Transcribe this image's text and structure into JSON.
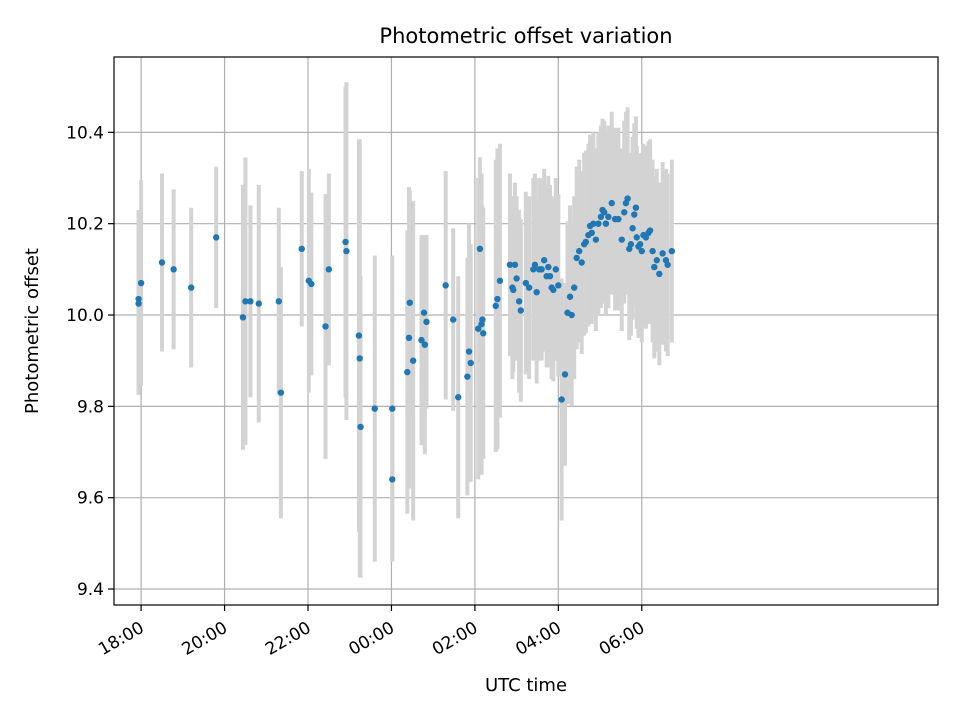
{
  "chart_data": {
    "type": "scatter",
    "title": "Photometric offset variation",
    "xlabel": "UTC time",
    "ylabel": "Photometric offset",
    "x_range_hours": [
      -6.65,
      13.1
    ],
    "ylim": [
      9.365,
      10.565
    ],
    "x_ticks": [
      {
        "hour": -6,
        "label": "18:00"
      },
      {
        "hour": -4,
        "label": "20:00"
      },
      {
        "hour": -2,
        "label": "22:00"
      },
      {
        "hour": 0,
        "label": "00:00"
      },
      {
        "hour": 2,
        "label": "02:00"
      },
      {
        "hour": 4,
        "label": "04:00"
      },
      {
        "hour": 6,
        "label": "06:00"
      }
    ],
    "y_ticks": [
      {
        "value": 9.4,
        "label": "9.4"
      },
      {
        "value": 9.6,
        "label": "9.6"
      },
      {
        "value": 9.8,
        "label": "9.8"
      },
      {
        "value": 10.0,
        "label": "10.0"
      },
      {
        "value": 10.2,
        "label": "10.2"
      },
      {
        "value": 10.4,
        "label": "10.4"
      }
    ],
    "grid": true,
    "colors": {
      "points": "#1f77b4",
      "errorbars": "#d3d3d3",
      "grid": "#b0b0b0"
    },
    "series": [
      {
        "x_note": "hours relative to 00:00 UTC",
        "points": [
          [
            -6.06,
            10.035,
            0.195
          ],
          [
            -6.06,
            10.025,
            0.2
          ],
          [
            -6.0,
            10.07,
            0.225
          ],
          [
            -5.5,
            10.115,
            0.195
          ],
          [
            -5.22,
            10.1,
            0.175
          ],
          [
            -4.8,
            10.06,
            0.175
          ],
          [
            -4.2,
            10.17,
            0.155
          ],
          [
            -3.56,
            9.995,
            0.29
          ],
          [
            -3.5,
            10.03,
            0.315
          ],
          [
            -3.38,
            10.03,
            0.21
          ],
          [
            -3.18,
            10.025,
            0.26
          ],
          [
            -2.7,
            10.03,
            0.205
          ],
          [
            -2.65,
            9.83,
            0.275
          ],
          [
            -2.15,
            10.145,
            0.17
          ],
          [
            -1.98,
            10.075,
            0.245
          ],
          [
            -1.92,
            10.068,
            0.2
          ],
          [
            -1.58,
            9.975,
            0.29
          ],
          [
            -1.5,
            10.1,
            0.21
          ],
          [
            -1.1,
            10.16,
            0.34
          ],
          [
            -1.08,
            10.14,
            0.37
          ],
          [
            -0.78,
            9.955,
            0.43
          ],
          [
            -0.76,
            9.905,
            0.48
          ],
          [
            -0.74,
            9.755,
            0.33
          ],
          [
            -0.4,
            9.795,
            0.335
          ],
          [
            0.02,
            9.795,
            0.335
          ],
          [
            0.02,
            9.64,
            0.175
          ],
          [
            0.38,
            9.875,
            0.31
          ],
          [
            0.42,
            9.95,
            0.33
          ],
          [
            0.44,
            10.027,
            0.245
          ],
          [
            0.52,
            9.9,
            0.35
          ],
          [
            0.72,
            9.945,
            0.23
          ],
          [
            0.78,
            10.005,
            0.17
          ],
          [
            0.8,
            9.935,
            0.24
          ],
          [
            0.84,
            9.985,
            0.19
          ],
          [
            1.3,
            10.065,
            0.25
          ],
          [
            1.48,
            9.99,
            0.2
          ],
          [
            1.6,
            9.82,
            0.265
          ],
          [
            1.82,
            9.865,
            0.26
          ],
          [
            1.86,
            9.92,
            0.28
          ],
          [
            1.9,
            9.895,
            0.26
          ],
          [
            2.08,
            9.97,
            0.33
          ],
          [
            2.12,
            10.145,
            0.2
          ],
          [
            2.16,
            9.98,
            0.33
          ],
          [
            2.18,
            9.99,
            0.25
          ],
          [
            2.2,
            9.96,
            0.275
          ],
          [
            2.5,
            10.02,
            0.32
          ],
          [
            2.54,
            10.035,
            0.33
          ],
          [
            2.6,
            10.075,
            0.3
          ],
          [
            2.84,
            10.11,
            0.2
          ],
          [
            2.9,
            10.06,
            0.2
          ],
          [
            2.92,
            10.055,
            0.18
          ],
          [
            2.96,
            10.11,
            0.18
          ],
          [
            3.0,
            10.08,
            0.18
          ],
          [
            3.06,
            10.03,
            0.2
          ],
          [
            3.1,
            10.01,
            0.2
          ],
          [
            3.22,
            10.07,
            0.2
          ],
          [
            3.3,
            10.06,
            0.2
          ],
          [
            3.4,
            10.1,
            0.2
          ],
          [
            3.44,
            10.11,
            0.2
          ],
          [
            3.48,
            10.05,
            0.2
          ],
          [
            3.54,
            10.1,
            0.2
          ],
          [
            3.6,
            10.1,
            0.2
          ],
          [
            3.66,
            10.12,
            0.2
          ],
          [
            3.72,
            10.085,
            0.2
          ],
          [
            3.76,
            10.105,
            0.2
          ],
          [
            3.8,
            10.085,
            0.2
          ],
          [
            3.84,
            10.06,
            0.2
          ],
          [
            3.88,
            10.055,
            0.2
          ],
          [
            3.94,
            10.1,
            0.2
          ],
          [
            4.0,
            10.065,
            0.2
          ],
          [
            4.08,
            9.815,
            0.265
          ],
          [
            4.16,
            9.87,
            0.2
          ],
          [
            4.22,
            10.005,
            0.2
          ],
          [
            4.28,
            10.04,
            0.2
          ],
          [
            4.32,
            10.0,
            0.2
          ],
          [
            4.38,
            10.06,
            0.2
          ],
          [
            4.44,
            10.125,
            0.2
          ],
          [
            4.5,
            10.14,
            0.2
          ],
          [
            4.56,
            10.115,
            0.2
          ],
          [
            4.62,
            10.155,
            0.2
          ],
          [
            4.66,
            10.16,
            0.2
          ],
          [
            4.72,
            10.175,
            0.2
          ],
          [
            4.76,
            10.195,
            0.2
          ],
          [
            4.8,
            10.18,
            0.2
          ],
          [
            4.84,
            10.2,
            0.2
          ],
          [
            4.9,
            10.165,
            0.2
          ],
          [
            4.96,
            10.2,
            0.2
          ],
          [
            5.02,
            10.215,
            0.2
          ],
          [
            5.06,
            10.23,
            0.2
          ],
          [
            5.1,
            10.225,
            0.2
          ],
          [
            5.14,
            10.2,
            0.2
          ],
          [
            5.2,
            10.215,
            0.2
          ],
          [
            5.28,
            10.245,
            0.2
          ],
          [
            5.36,
            10.21,
            0.2
          ],
          [
            5.44,
            10.21,
            0.2
          ],
          [
            5.52,
            10.165,
            0.2
          ],
          [
            5.58,
            10.225,
            0.2
          ],
          [
            5.62,
            10.245,
            0.2
          ],
          [
            5.66,
            10.255,
            0.2
          ],
          [
            5.7,
            10.145,
            0.2
          ],
          [
            5.74,
            10.155,
            0.2
          ],
          [
            5.78,
            10.19,
            0.2
          ],
          [
            5.82,
            10.22,
            0.2
          ],
          [
            5.86,
            10.235,
            0.2
          ],
          [
            5.88,
            10.17,
            0.2
          ],
          [
            5.92,
            10.15,
            0.2
          ],
          [
            5.96,
            10.155,
            0.2
          ],
          [
            6.0,
            10.14,
            0.2
          ],
          [
            6.04,
            10.175,
            0.2
          ],
          [
            6.1,
            10.17,
            0.2
          ],
          [
            6.16,
            10.18,
            0.2
          ],
          [
            6.2,
            10.185,
            0.2
          ],
          [
            6.26,
            10.14,
            0.2
          ],
          [
            6.3,
            10.105,
            0.2
          ],
          [
            6.36,
            10.12,
            0.2
          ],
          [
            6.42,
            10.09,
            0.2
          ],
          [
            6.5,
            10.135,
            0.2
          ],
          [
            6.58,
            10.12,
            0.2
          ],
          [
            6.62,
            10.11,
            0.2
          ],
          [
            6.72,
            10.14,
            0.2
          ]
        ]
      }
    ]
  }
}
